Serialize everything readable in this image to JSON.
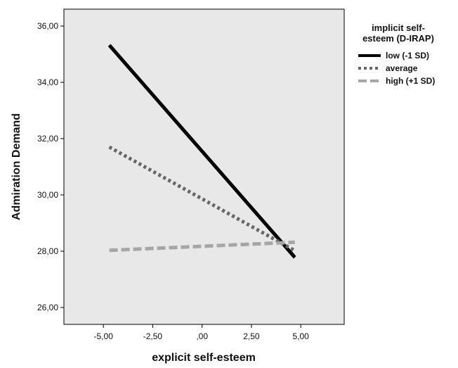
{
  "chart_data": {
    "type": "line",
    "title": "",
    "xlabel": "explicit self-esteem",
    "ylabel": "Admiration Demand",
    "xlim": [
      -7.0,
      7.2
    ],
    "ylim": [
      25.4,
      36.6
    ],
    "x_ticks": [
      -5.0,
      -2.5,
      0.0,
      2.5,
      5.0
    ],
    "x_tick_labels": [
      "-5,00",
      "-2,50",
      ",00",
      "2,50",
      "5,00"
    ],
    "y_ticks": [
      26,
      28,
      30,
      32,
      34,
      36
    ],
    "y_tick_labels": [
      "26,00",
      "28,00",
      "30,00",
      "32,00",
      "34,00",
      "36,00"
    ],
    "grid": false,
    "plot_background": "#e8e8e8",
    "legend": {
      "title_lines": [
        "implicit self-",
        "esteem (D-IRAP)"
      ],
      "placement": "right"
    },
    "series": [
      {
        "name": "low (-1 SD)",
        "color": "#000000",
        "style": "solid",
        "x": [
          -4.7,
          4.7
        ],
        "y": [
          35.32,
          27.78
        ]
      },
      {
        "name": "average",
        "color": "#666666",
        "style": "dotted",
        "x": [
          -4.7,
          4.7
        ],
        "y": [
          31.7,
          28.02
        ]
      },
      {
        "name": "high (+1 SD)",
        "color": "#a6a6a6",
        "style": "dashed",
        "x": [
          -4.7,
          4.7
        ],
        "y": [
          28.03,
          28.32
        ]
      }
    ]
  }
}
